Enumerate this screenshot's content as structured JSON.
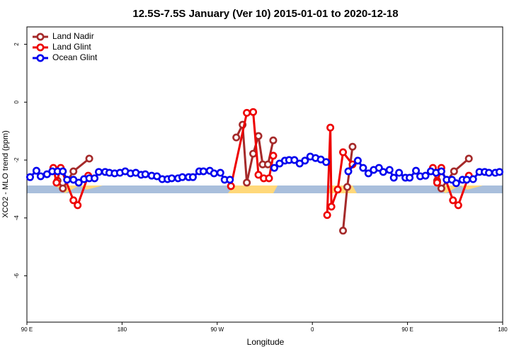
{
  "chart_data": {
    "type": "line",
    "title": "12.5S-7.5S January (Ver 10)   2015-01-01 to 2020-12-18",
    "x_label": "Longitude",
    "y_label": "XCO2 - MLO trend (ppm)",
    "xlim": [
      90,
      540
    ],
    "xticks": [
      {
        "value": 90,
        "label": "90 E"
      },
      {
        "value": 180,
        "label": "180"
      },
      {
        "value": 270,
        "label": "90 W"
      },
      {
        "value": 360,
        "label": "0"
      },
      {
        "value": 450,
        "label": "90 E"
      },
      {
        "value": 540,
        "label": "180"
      }
    ],
    "ylim": [
      -7.6,
      2.6
    ],
    "yticks": [
      2,
      0,
      -2,
      -4,
      -6
    ],
    "legend": "top-left",
    "series": [
      {
        "name": "Land Nadir",
        "color": "#a52a2a",
        "x": [
          119,
          124,
          134,
          149,
          null,
          288,
          294,
          298,
          304,
          309,
          313,
          318,
          323,
          null,
          389,
          393,
          398,
          null,
          478,
          482,
          494,
          508
        ],
        "values": [
          -2.71,
          -2.98,
          -2.39,
          -1.95,
          null,
          -1.22,
          -0.78,
          -2.78,
          -1.78,
          -1.17,
          -2.15,
          -2.15,
          -1.32,
          null,
          -4.44,
          -2.93,
          -1.54,
          null,
          -2.71,
          -2.98,
          -2.39,
          -1.95
        ]
      },
      {
        "name": "Land Glint",
        "color": "#ee0000",
        "x": [
          115,
          118,
          122,
          134,
          138,
          148,
          null,
          283,
          298,
          304,
          309,
          314,
          319,
          323,
          null,
          374,
          377,
          378,
          384,
          389,
          398,
          null,
          474,
          478,
          482,
          493,
          498,
          508
        ],
        "values": [
          -2.27,
          -2.78,
          -2.27,
          -3.39,
          -3.56,
          -2.54,
          null,
          -2.9,
          -0.37,
          -0.34,
          -2.51,
          -2.63,
          -2.63,
          -1.85,
          null,
          -3.9,
          -0.88,
          -3.61,
          -3.02,
          -1.73,
          -2.15,
          null,
          -2.27,
          -2.78,
          -2.27,
          -3.39,
          -3.56,
          -2.54
        ]
      },
      {
        "name": "Ocean Glint",
        "color": "#0000ee",
        "x": [
          93,
          99,
          103,
          109,
          114,
          119,
          124,
          128,
          134,
          139,
          144,
          149,
          154,
          158,
          164,
          168,
          173,
          178,
          183,
          188,
          193,
          198,
          202,
          208,
          213,
          218,
          223,
          227,
          233,
          237,
          243,
          247,
          253,
          257,
          263,
          267,
          273,
          277,
          282,
          null,
          324,
          329,
          334,
          338,
          343,
          348,
          353,
          358,
          363,
          368,
          373,
          null,
          394,
          403,
          408,
          413,
          418,
          423,
          427,
          433,
          437,
          442,
          448,
          452,
          458,
          462,
          467,
          472,
          477,
          482,
          487,
          492,
          496,
          502,
          506,
          512,
          518,
          523,
          527,
          533,
          537
        ],
        "values": [
          -2.59,
          -2.37,
          -2.56,
          -2.49,
          -2.39,
          -2.39,
          -2.39,
          -2.68,
          -2.68,
          -2.78,
          -2.66,
          -2.63,
          -2.63,
          -2.41,
          -2.41,
          -2.44,
          -2.46,
          -2.44,
          -2.39,
          -2.46,
          -2.44,
          -2.51,
          -2.49,
          -2.54,
          -2.56,
          -2.66,
          -2.66,
          -2.63,
          -2.63,
          -2.59,
          -2.59,
          -2.59,
          -2.39,
          -2.39,
          -2.37,
          -2.46,
          -2.44,
          -2.68,
          -2.68,
          null,
          -2.27,
          -2.12,
          -2.02,
          -2.0,
          -2.0,
          -2.12,
          -2.02,
          -1.88,
          -1.93,
          -1.98,
          -2.07,
          null,
          -2.39,
          -2.02,
          -2.27,
          -2.46,
          -2.34,
          -2.27,
          -2.41,
          -2.34,
          -2.61,
          -2.44,
          -2.61,
          -2.61,
          -2.37,
          -2.56,
          -2.54,
          -2.39,
          -2.44,
          -2.39,
          -2.68,
          -2.68,
          -2.8,
          -2.68,
          -2.68,
          -2.66,
          -2.41,
          -2.41,
          -2.44,
          -2.44,
          -2.41
        ]
      }
    ]
  }
}
